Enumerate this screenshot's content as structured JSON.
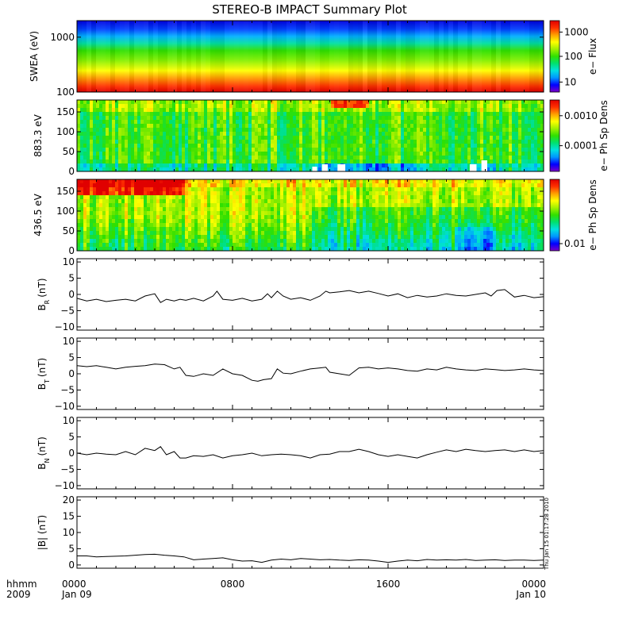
{
  "title": "STEREO-B IMPACT Summary Plot",
  "timestamp": "Thu Jan 15 01:17:28 2010",
  "x_axis": {
    "label_top": "hhmm",
    "label_bottom": "2009",
    "ticks": [
      {
        "time": "0000",
        "date": "Jan 09",
        "hours": 0
      },
      {
        "time": "0800",
        "date": "",
        "hours": 8
      },
      {
        "time": "1600",
        "date": "",
        "hours": 16
      },
      {
        "time": "0000",
        "date": "Jan 10",
        "hours": 24
      }
    ],
    "range_hours": [
      0,
      24
    ]
  },
  "colors": {
    "spectrum": [
      "#7a00c8",
      "#0000ff",
      "#0096ff",
      "#00e0e0",
      "#00e070",
      "#30e000",
      "#a0f000",
      "#ffff00",
      "#ffa000",
      "#ff3000",
      "#e00000"
    ],
    "line": "#000000"
  },
  "chart_data": [
    {
      "type": "heatmap",
      "panel": "swea",
      "ylabel": "SWEA (eV)",
      "yscale": "log",
      "ylim": [
        100,
        2000
      ],
      "yticks": [
        {
          "v": 1000,
          "t": "1000"
        },
        {
          "v": 100,
          "t": "100"
        }
      ],
      "colorbar": {
        "label": "e− Flux",
        "scale": "log",
        "ticks": [
          {
            "t": "1000",
            "f": 0.84
          },
          {
            "t": "100",
            "f": 0.5
          },
          {
            "t": "10",
            "f": 0.14
          }
        ]
      },
      "description": "flux highest at 100 eV (red), decreasing to blue near 2000 eV"
    },
    {
      "type": "heatmap",
      "panel": "pad883",
      "ylabel": "883.3 eV",
      "ylim": [
        0,
        180
      ],
      "yticks": [
        {
          "v": 0,
          "t": "0"
        },
        {
          "v": 50,
          "t": "50"
        },
        {
          "v": 100,
          "t": "100"
        },
        {
          "v": 150,
          "t": "150"
        }
      ],
      "colorbar": {
        "label": "e− Ph Sp Dens",
        "scale": "log",
        "ticks": [
          {
            "t": "0.0010",
            "f": 0.78
          },
          {
            "t": "0.0001",
            "f": 0.36
          }
        ]
      }
    },
    {
      "type": "heatmap",
      "panel": "pad436",
      "ylabel": "436.5 eV",
      "ylim": [
        0,
        180
      ],
      "yticks": [
        {
          "v": 0,
          "t": "0"
        },
        {
          "v": 50,
          "t": "50"
        },
        {
          "v": 100,
          "t": "100"
        },
        {
          "v": 150,
          "t": "150"
        }
      ],
      "colorbar": {
        "label": "e− Ph Sp Dens",
        "scale": "log",
        "ticks": [
          {
            "t": "0.01",
            "f": 0.1
          }
        ]
      }
    },
    {
      "type": "line",
      "panel": "br",
      "ylabel": "B",
      "ylabel_sub": "R",
      "ylabel_unit": "(nT)",
      "ylim": [
        -11,
        11
      ],
      "yticks": [
        {
          "v": -10,
          "t": "−10"
        },
        {
          "v": -5,
          "t": "−5"
        },
        {
          "v": 0,
          "t": "0"
        },
        {
          "v": 5,
          "t": "5"
        },
        {
          "v": 10,
          "t": "10"
        }
      ],
      "x": [
        0,
        0.5,
        1,
        1.5,
        2,
        2.5,
        3,
        3.5,
        4,
        4.3,
        4.6,
        5,
        5.3,
        5.6,
        6,
        6.5,
        7,
        7.2,
        7.5,
        8,
        8.5,
        9,
        9.5,
        9.8,
        10,
        10.3,
        10.6,
        11,
        11.5,
        12,
        12.5,
        12.8,
        13,
        13.5,
        14,
        14.5,
        15,
        15.5,
        16,
        16.5,
        17,
        17.5,
        18,
        18.5,
        19,
        19.5,
        20,
        20.5,
        21,
        21.3,
        21.6,
        22,
        22.5,
        23,
        23.5,
        24
      ],
      "y": [
        -1.2,
        -2,
        -1.5,
        -2.2,
        -1.8,
        -1.5,
        -2,
        -0.5,
        0.2,
        -2.5,
        -1.5,
        -2,
        -1.5,
        -1.8,
        -1.2,
        -2,
        -0.5,
        1,
        -1.5,
        -1.8,
        -1.2,
        -2,
        -1.5,
        0.2,
        -1,
        1,
        -0.5,
        -1.5,
        -1,
        -1.8,
        -0.5,
        1,
        0.5,
        0.8,
        1.2,
        0.5,
        1,
        0.3,
        -0.5,
        0.2,
        -1,
        -0.3,
        -0.8,
        -0.5,
        0.2,
        -0.3,
        -0.5,
        0,
        0.5,
        -0.5,
        1.2,
        1.5,
        -0.8,
        -0.3,
        -1,
        -0.7
      ]
    },
    {
      "type": "line",
      "panel": "bt",
      "ylabel": "B",
      "ylabel_sub": "T",
      "ylabel_unit": "(nT)",
      "ylim": [
        -11,
        11
      ],
      "yticks": [
        {
          "v": -10,
          "t": "−10"
        },
        {
          "v": -5,
          "t": "−5"
        },
        {
          "v": 0,
          "t": "0"
        },
        {
          "v": 5,
          "t": "5"
        },
        {
          "v": 10,
          "t": "10"
        }
      ],
      "x": [
        0,
        0.5,
        1,
        1.5,
        2,
        2.5,
        3,
        3.5,
        4,
        4.5,
        5,
        5.3,
        5.6,
        6,
        6.5,
        7,
        7.5,
        8,
        8.5,
        9,
        9.3,
        9.6,
        10,
        10.3,
        10.6,
        11,
        11.5,
        12,
        12.5,
        12.8,
        13,
        13.5,
        14,
        14.5,
        15,
        15.5,
        16,
        16.5,
        17,
        17.5,
        18,
        18.5,
        19,
        19.5,
        20,
        20.5,
        21,
        21.5,
        22,
        22.5,
        23,
        23.5,
        24
      ],
      "y": [
        2.5,
        2.2,
        2.5,
        2,
        1.5,
        2,
        2.3,
        2.5,
        3,
        2.8,
        1.5,
        2,
        -0.5,
        -0.8,
        0,
        -0.5,
        1.5,
        0,
        -0.5,
        -2,
        -2.3,
        -1.8,
        -1.5,
        1.5,
        0.2,
        0,
        0.8,
        1.5,
        1.8,
        2,
        0.5,
        0,
        -0.5,
        1.8,
        2,
        1.5,
        1.8,
        1.5,
        1,
        0.8,
        1.5,
        1.2,
        2,
        1.5,
        1.2,
        1,
        1.5,
        1.3,
        1,
        1.2,
        1.5,
        1.2,
        1
      ]
    },
    {
      "type": "line",
      "panel": "bn",
      "ylabel": "B",
      "ylabel_sub": "N",
      "ylabel_unit": "(nT)",
      "ylim": [
        -11,
        11
      ],
      "yticks": [
        {
          "v": -10,
          "t": "−10"
        },
        {
          "v": -5,
          "t": "−5"
        },
        {
          "v": 0,
          "t": "0"
        },
        {
          "v": 5,
          "t": "5"
        },
        {
          "v": 10,
          "t": "10"
        }
      ],
      "x": [
        0,
        0.5,
        1,
        1.5,
        2,
        2.5,
        3,
        3.5,
        4,
        4.3,
        4.6,
        5,
        5.3,
        5.6,
        6,
        6.5,
        7,
        7.5,
        8,
        8.5,
        9,
        9.5,
        10,
        10.5,
        11,
        11.5,
        12,
        12.5,
        13,
        13.5,
        14,
        14.5,
        15,
        15.5,
        16,
        16.5,
        17,
        17.5,
        18,
        18.5,
        19,
        19.5,
        20,
        20.5,
        21,
        21.5,
        22,
        22.5,
        23,
        23.5,
        24
      ],
      "y": [
        0,
        -0.5,
        0,
        -0.3,
        -0.5,
        0.5,
        -0.5,
        1.5,
        0.8,
        2,
        -0.5,
        0.5,
        -1.5,
        -1.5,
        -0.8,
        -1,
        -0.5,
        -1.5,
        -0.8,
        -0.5,
        0,
        -0.8,
        -0.5,
        -0.3,
        -0.5,
        -0.8,
        -1.5,
        -0.5,
        -0.3,
        0.5,
        0.5,
        1.2,
        0.5,
        -0.5,
        -1,
        -0.5,
        -1,
        -1.5,
        -0.5,
        0.3,
        1,
        0.5,
        1.2,
        0.8,
        0.5,
        0.8,
        1,
        0.5,
        1,
        0.5,
        0.8
      ]
    },
    {
      "type": "line",
      "panel": "bmag",
      "ylabel": "|B| (nT)",
      "ylim": [
        -1,
        21
      ],
      "yticks": [
        {
          "v": 0,
          "t": "0"
        },
        {
          "v": 5,
          "t": "5"
        },
        {
          "v": 10,
          "t": "10"
        },
        {
          "v": 15,
          "t": "15"
        },
        {
          "v": 20,
          "t": "20"
        }
      ],
      "x": [
        0,
        0.5,
        1,
        1.5,
        2,
        2.5,
        3,
        3.5,
        4,
        4.5,
        5,
        5.5,
        6,
        6.5,
        7,
        7.5,
        8,
        8.5,
        9,
        9.5,
        10,
        10.5,
        11,
        11.5,
        12,
        12.5,
        13,
        13.5,
        14,
        14.5,
        15,
        15.5,
        16,
        16.5,
        17,
        17.5,
        18,
        18.5,
        19,
        19.5,
        20,
        20.5,
        21,
        21.5,
        22,
        22.5,
        23,
        23.5,
        24
      ],
      "y": [
        2.8,
        2.8,
        2.5,
        2.6,
        2.7,
        2.8,
        3,
        3.2,
        3.3,
        3,
        2.8,
        2.5,
        1.6,
        1.8,
        2,
        2.2,
        1.6,
        1.2,
        1.3,
        0.8,
        1.5,
        1.8,
        1.6,
        2,
        1.8,
        1.6,
        1.7,
        1.5,
        1.4,
        1.6,
        1.5,
        1.2,
        0.8,
        1.2,
        1.5,
        1.3,
        1.7,
        1.5,
        1.6,
        1.5,
        1.7,
        1.4,
        1.5,
        1.6,
        1.4,
        1.5,
        1.5,
        1.4,
        1.5
      ]
    }
  ]
}
